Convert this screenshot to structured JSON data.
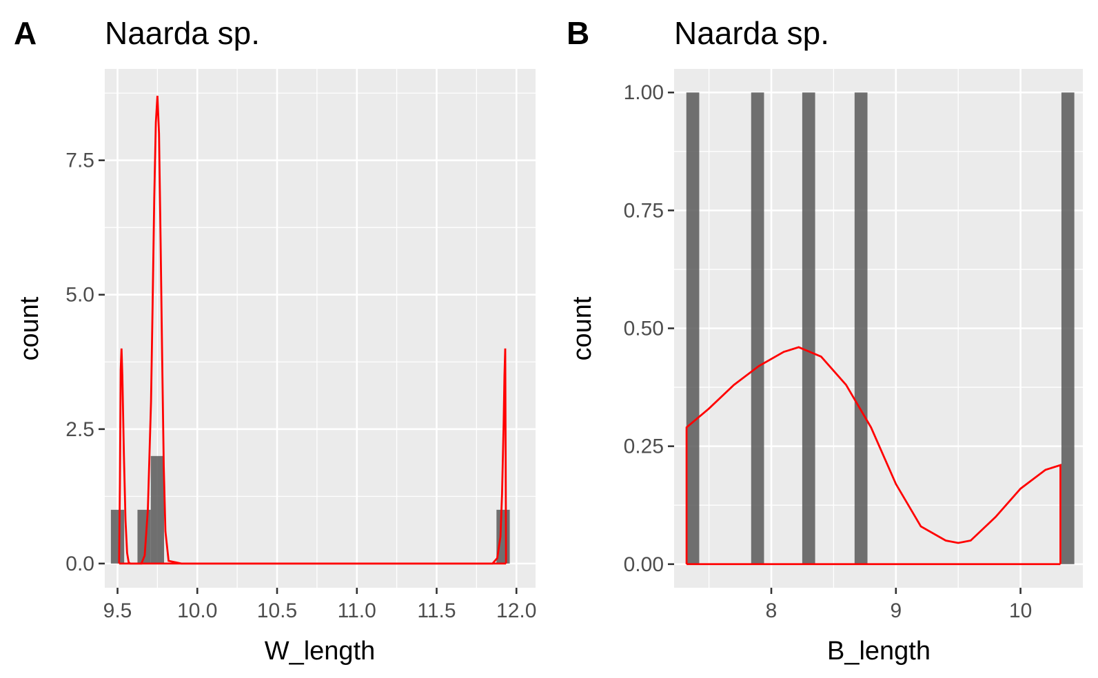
{
  "chart_data": [
    {
      "panel_label": "A",
      "type": "bar",
      "title": "Naarda sp.",
      "xlabel": "W_length",
      "ylabel": "count",
      "xlim": [
        9.42,
        12.12
      ],
      "ylim": [
        -0.45,
        9.2
      ],
      "xticks": [
        9.5,
        10.0,
        10.5,
        11.0,
        11.5,
        12.0
      ],
      "xtick_labels": [
        "9.5",
        "10.0",
        "10.5",
        "11.0",
        "11.5",
        "12.0"
      ],
      "yticks": [
        0.0,
        2.5,
        5.0,
        7.5
      ],
      "ytick_labels": [
        "0.0",
        "2.5",
        "5.0",
        "7.5"
      ],
      "bin_width": 0.0833,
      "bars": [
        {
          "x": 9.5,
          "count": 1
        },
        {
          "x": 9.6667,
          "count": 1
        },
        {
          "x": 9.75,
          "count": 2
        },
        {
          "x": 11.9167,
          "count": 1
        }
      ],
      "density_curve": {
        "color": "#ff0000",
        "x": [
          9.51,
          9.515,
          9.52,
          9.525,
          9.53,
          9.54,
          9.55,
          9.56,
          9.57,
          9.58,
          9.6,
          9.62,
          9.65,
          9.67,
          9.69,
          9.71,
          9.72,
          9.73,
          9.74,
          9.75,
          9.76,
          9.77,
          9.78,
          9.79,
          9.8,
          9.82,
          9.9,
          10.5,
          11.0,
          11.5,
          11.85,
          11.88,
          11.9,
          11.91,
          11.92,
          11.925,
          11.93,
          11.935
        ],
        "y": [
          0,
          1.5,
          3.6,
          4.0,
          3.5,
          2.0,
          0.8,
          0.2,
          0.02,
          0,
          0,
          0,
          0,
          0.15,
          1.0,
          3.0,
          4.8,
          6.8,
          8.2,
          8.7,
          8.0,
          6.0,
          3.8,
          1.8,
          0.6,
          0.05,
          0,
          0,
          0,
          0,
          0,
          0.1,
          0.5,
          1.3,
          2.6,
          3.5,
          4.0,
          0
        ]
      }
    },
    {
      "panel_label": "B",
      "type": "bar",
      "title": "Naarda sp.",
      "xlabel": "B_length",
      "ylabel": "count",
      "xlim": [
        7.22,
        10.5
      ],
      "ylim": [
        -0.05,
        1.05
      ],
      "xticks": [
        8,
        9,
        10
      ],
      "xtick_labels": [
        "8",
        "9",
        "10"
      ],
      "yticks": [
        0.0,
        0.25,
        0.5,
        0.75,
        1.0
      ],
      "ytick_labels": [
        "0.00",
        "0.25",
        "0.50",
        "0.75",
        "1.00"
      ],
      "bin_width": 0.1034,
      "bars": [
        {
          "x": 7.37,
          "count": 1
        },
        {
          "x": 7.89,
          "count": 1
        },
        {
          "x": 8.3,
          "count": 1
        },
        {
          "x": 8.72,
          "count": 1
        },
        {
          "x": 10.38,
          "count": 1
        }
      ],
      "density_curve": {
        "color": "#ff0000",
        "x": [
          7.32,
          7.32,
          7.5,
          7.7,
          7.9,
          8.1,
          8.22,
          8.4,
          8.6,
          8.8,
          9.0,
          9.2,
          9.4,
          9.5,
          9.6,
          9.8,
          10.0,
          10.2,
          10.32,
          10.32
        ],
        "y": [
          0,
          0.29,
          0.33,
          0.38,
          0.42,
          0.45,
          0.46,
          0.44,
          0.38,
          0.29,
          0.17,
          0.08,
          0.05,
          0.045,
          0.05,
          0.1,
          0.16,
          0.2,
          0.21,
          0
        ]
      }
    }
  ]
}
